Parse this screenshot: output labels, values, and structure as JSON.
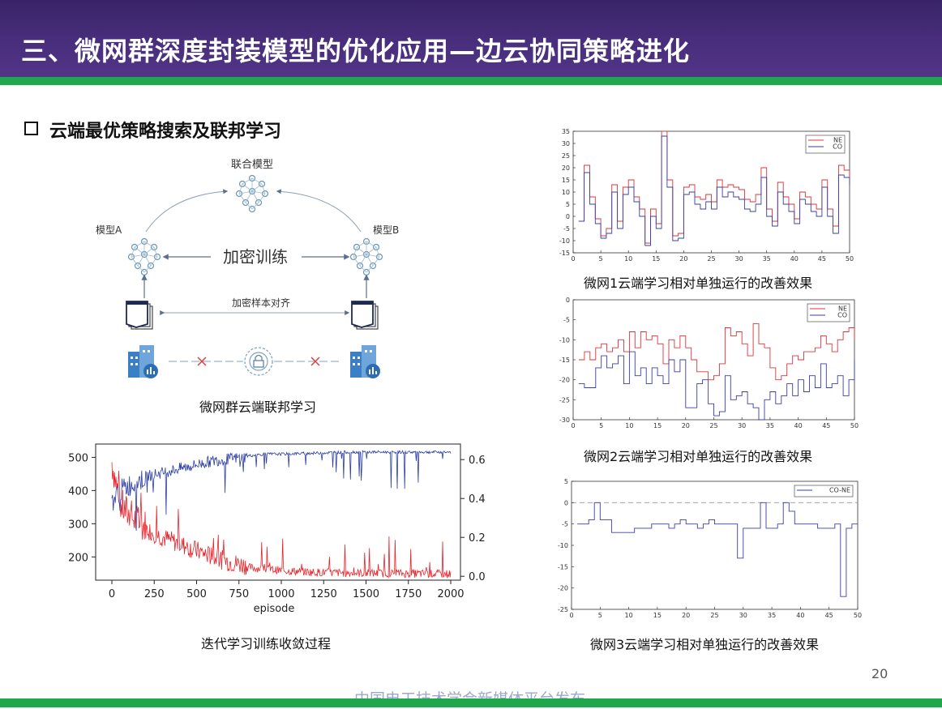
{
  "header": {
    "title": "三、微网群深度封装模型的优化应用—边云协同策略进化",
    "colors": {
      "banner": "#4a2f7e",
      "stripe": "#1fa74d"
    }
  },
  "section": {
    "heading": "云端最优策略搜索及联邦学习",
    "bullet_icon": "hollow-square"
  },
  "diagram": {
    "joint_model": "联合模型",
    "model_a": "模型A",
    "model_b": "模型B",
    "encrypted_training": "加密训练",
    "sample_alignment": "加密样本对齐",
    "icons": [
      "neural-network-icon",
      "document-stack-icon",
      "building-chart-icon",
      "lock-icon",
      "cross-icon"
    ],
    "caption": "微网群云端联邦学习"
  },
  "training_chart": {
    "caption": "迭代学习训练收敛过程",
    "xlabel": "episode",
    "x_ticks": [
      "0",
      "250",
      "500",
      "750",
      "1000",
      "1250",
      "1500",
      "1750",
      "2000"
    ],
    "y_left_ticks": [
      "500",
      "400",
      "300",
      "200"
    ],
    "y_right_ticks": [
      "0.6",
      "0.4",
      "0.2",
      "0.0"
    ]
  },
  "page": {
    "number": "20",
    "watermark": "中国电工技术学会新媒体平台发布"
  },
  "chart_data": [
    {
      "type": "line",
      "title": "",
      "xlabel": "episode",
      "ylabel": "",
      "xlim": [
        0,
        2000
      ],
      "ylim": [
        130,
        540
      ],
      "y2lim": [
        -0.02,
        0.68
      ],
      "legend": "none",
      "series": [
        {
          "name": "",
          "axis": "left",
          "color": "#e8222a",
          "x": [
            0,
            50,
            100,
            150,
            200,
            300,
            400,
            500,
            600,
            700,
            800,
            900,
            1000,
            1200,
            1400,
            1600,
            1800,
            2000
          ],
          "y": [
            470,
            340,
            310,
            290,
            275,
            250,
            230,
            210,
            190,
            175,
            165,
            160,
            155,
            150,
            148,
            147,
            146,
            145
          ]
        },
        {
          "name": "",
          "axis": "right",
          "color": "#2b3da6",
          "x": [
            0,
            50,
            100,
            150,
            200,
            300,
            400,
            500,
            600,
            700,
            800,
            900,
            1000,
            1200,
            1400,
            1600,
            1800,
            2000
          ],
          "y": [
            0.4,
            0.45,
            0.48,
            0.5,
            0.52,
            0.54,
            0.56,
            0.58,
            0.6,
            0.61,
            0.62,
            0.63,
            0.63,
            0.635,
            0.64,
            0.64,
            0.64,
            0.64
          ]
        }
      ]
    },
    {
      "type": "line",
      "step": true,
      "title": "",
      "caption": "微网1云端学习相对单独运行的改善效果",
      "xlim": [
        0,
        50
      ],
      "ylim": [
        -15,
        35
      ],
      "x_ticks": [
        0,
        5,
        10,
        15,
        20,
        25,
        30,
        35,
        40,
        45,
        50
      ],
      "y_ticks": [
        35,
        30,
        25,
        20,
        15,
        10,
        5,
        0,
        -5,
        -10,
        -15
      ],
      "legend": "top-right",
      "series": [
        {
          "name": "NE",
          "color": "#d9343a",
          "values": [
            -2,
            21,
            8,
            -1,
            -8,
            -5,
            13,
            -2,
            12,
            15,
            8,
            3,
            -11,
            3,
            -3,
            36,
            15,
            -8,
            -7,
            12,
            13,
            8,
            7,
            9,
            6,
            15,
            12,
            13,
            12,
            11,
            7,
            6,
            9,
            20,
            3,
            -2,
            14,
            8,
            5,
            -1,
            10,
            8,
            5,
            3,
            15,
            3,
            -4,
            21,
            19,
            16
          ]
        },
        {
          "name": "CO",
          "color": "#3a3fa6",
          "values": [
            -2,
            18,
            5,
            -3,
            -9,
            -7,
            10,
            -5,
            9,
            12,
            6,
            0,
            -12,
            0,
            -5,
            33,
            12,
            -10,
            -9,
            9,
            10,
            5,
            3,
            6,
            3,
            12,
            8,
            10,
            8,
            7,
            3,
            2,
            5,
            16,
            0,
            -4,
            10,
            5,
            2,
            -3,
            7,
            5,
            2,
            0,
            12,
            0,
            -7,
            17,
            16,
            13
          ]
        }
      ]
    },
    {
      "type": "line",
      "step": true,
      "title": "",
      "caption": "微网2云端学习相对单独运行的改善效果",
      "xlim": [
        0,
        50
      ],
      "ylim": [
        -30,
        0
      ],
      "x_ticks": [
        0,
        5,
        10,
        15,
        20,
        25,
        30,
        35,
        40,
        45,
        50
      ],
      "y_ticks": [
        0,
        -5,
        -10,
        -15,
        -20,
        -25,
        -30
      ],
      "legend": "top-right",
      "series": [
        {
          "name": "NE",
          "color": "#d9343a",
          "values": [
            -15,
            -13,
            -15,
            -12,
            -11,
            -13,
            -12,
            -10,
            -13,
            -8,
            -12,
            -8,
            -10,
            -9,
            -11,
            -16,
            -10,
            -12,
            -9,
            -12,
            -15,
            -18,
            -18,
            -20,
            -19,
            -16,
            -7,
            -9,
            -8,
            -11,
            -14,
            -6,
            -11,
            -12,
            -17,
            -20,
            -19,
            -16,
            -14,
            -15,
            -13,
            -13,
            -12,
            -9,
            -11,
            -13,
            -10,
            -8,
            -7,
            -10
          ]
        },
        {
          "name": "CO",
          "color": "#3a3fa6",
          "values": [
            -21,
            -22,
            -22,
            -17,
            -14,
            -17,
            -16,
            -14,
            -21,
            -13,
            -19,
            -17,
            -21,
            -17,
            -19,
            -21,
            -15,
            -18,
            -15,
            -27,
            -27,
            -21,
            -20,
            -26,
            -29,
            -28,
            -19,
            -25,
            -24,
            -23,
            -26,
            -27,
            -30,
            -25,
            -23,
            -26,
            -24,
            -21,
            -24,
            -20,
            -23,
            -19,
            -22,
            -16,
            -22,
            -21,
            -19,
            -24,
            -20,
            -15
          ]
        }
      ]
    },
    {
      "type": "line",
      "step": true,
      "title": "",
      "caption": "微网3云端学习相对单独运行的改善效果",
      "xlim": [
        0,
        50
      ],
      "ylim": [
        -25,
        5
      ],
      "x_ticks": [
        0,
        5,
        10,
        15,
        20,
        25,
        30,
        35,
        40,
        45,
        50
      ],
      "y_ticks": [
        5,
        0,
        -5,
        -10,
        -15,
        -20,
        -25
      ],
      "legend": "top-right",
      "reference_line": 0,
      "series": [
        {
          "name": "CO-NE",
          "color": "#3a3fa6",
          "values": [
            -5,
            -5,
            -4,
            0,
            -4,
            -4,
            -7,
            -7,
            -7,
            -7,
            -6,
            -6,
            -6,
            -5,
            -5,
            -5,
            -6,
            -5,
            -4,
            -5,
            -5,
            -6,
            -5,
            -4,
            -5,
            -5,
            -5,
            -5,
            -13,
            -6,
            -6,
            -6,
            0,
            -6,
            -6,
            -5,
            0,
            -2,
            -5,
            -5,
            -5,
            -5,
            -6,
            -6,
            -6,
            -5,
            -22,
            -6,
            -5,
            -5
          ]
        }
      ]
    }
  ]
}
